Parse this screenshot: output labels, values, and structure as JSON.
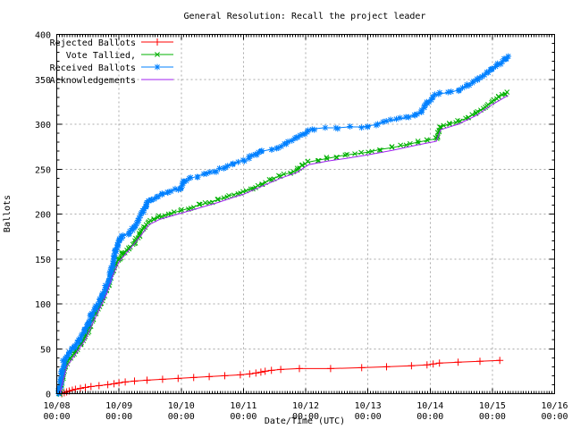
{
  "chart_data": {
    "type": "line",
    "title": "General Resolution: Recall the project leader",
    "xlabel": "Date/Time (UTC)",
    "ylabel": "Ballots",
    "xlim_days": [
      0,
      8
    ],
    "ylim": [
      0,
      400
    ],
    "grid": true,
    "legend_position": "top-left",
    "x_ticks": [
      {
        "t": 0,
        "line1": "10/08",
        "line2": "00:00"
      },
      {
        "t": 1,
        "line1": "10/09",
        "line2": "00:00"
      },
      {
        "t": 2,
        "line1": "10/10",
        "line2": "00:00"
      },
      {
        "t": 3,
        "line1": "10/11",
        "line2": "00:00"
      },
      {
        "t": 4,
        "line1": "10/12",
        "line2": "00:00"
      },
      {
        "t": 5,
        "line1": "10/13",
        "line2": "00:00"
      },
      {
        "t": 6,
        "line1": "10/14",
        "line2": "00:00"
      },
      {
        "t": 7,
        "line1": "10/15",
        "line2": "00:00"
      },
      {
        "t": 8,
        "line1": "10/16",
        "line2": "00:00"
      }
    ],
    "y_ticks": [
      0,
      50,
      100,
      150,
      200,
      250,
      300,
      350,
      400
    ],
    "colors": {
      "background": "#ffffff",
      "axis": "#000000",
      "grid": "#aaaaaa"
    },
    "series": [
      {
        "name": "Rejected Ballots",
        "color": "#ff0000",
        "marker": "plus",
        "marker_mode": "points",
        "points": [
          [
            0.08,
            0
          ],
          [
            0.12,
            1
          ],
          [
            0.16,
            2
          ],
          [
            0.2,
            3
          ],
          [
            0.25,
            4
          ],
          [
            0.3,
            5
          ],
          [
            0.38,
            6
          ],
          [
            0.46,
            7
          ],
          [
            0.55,
            8
          ],
          [
            0.68,
            9
          ],
          [
            0.82,
            10
          ],
          [
            0.92,
            11
          ],
          [
            1.0,
            12
          ],
          [
            1.1,
            13
          ],
          [
            1.25,
            14
          ],
          [
            1.45,
            15
          ],
          [
            1.7,
            16
          ],
          [
            1.95,
            17
          ],
          [
            2.2,
            18
          ],
          [
            2.45,
            19
          ],
          [
            2.7,
            20
          ],
          [
            2.95,
            21
          ],
          [
            3.1,
            22
          ],
          [
            3.2,
            23
          ],
          [
            3.28,
            24
          ],
          [
            3.35,
            25
          ],
          [
            3.45,
            26
          ],
          [
            3.6,
            27
          ],
          [
            3.9,
            28
          ],
          [
            4.4,
            28
          ],
          [
            4.9,
            29
          ],
          [
            5.3,
            30
          ],
          [
            5.7,
            31
          ],
          [
            5.95,
            32
          ],
          [
            6.05,
            33
          ],
          [
            6.15,
            34
          ],
          [
            6.45,
            35
          ],
          [
            6.8,
            36
          ],
          [
            7.12,
            37
          ]
        ]
      },
      {
        "name": "Vote Tallied,",
        "color": "#00b000",
        "marker": "cross",
        "marker_mode": "dense",
        "marker_every_value": 2,
        "points": [
          [
            0.04,
            0
          ],
          [
            0.07,
            8
          ],
          [
            0.1,
            18
          ],
          [
            0.13,
            28
          ],
          [
            0.16,
            34
          ],
          [
            0.22,
            40
          ],
          [
            0.3,
            47
          ],
          [
            0.38,
            55
          ],
          [
            0.46,
            64
          ],
          [
            0.52,
            73
          ],
          [
            0.58,
            83
          ],
          [
            0.64,
            92
          ],
          [
            0.7,
            100
          ],
          [
            0.75,
            107
          ],
          [
            0.8,
            115
          ],
          [
            0.85,
            124
          ],
          [
            0.89,
            134
          ],
          [
            0.93,
            143
          ],
          [
            1.0,
            150
          ],
          [
            1.07,
            157
          ],
          [
            1.15,
            162
          ],
          [
            1.25,
            168
          ],
          [
            1.33,
            177
          ],
          [
            1.41,
            186
          ],
          [
            1.48,
            191
          ],
          [
            1.56,
            194
          ],
          [
            1.65,
            197
          ],
          [
            1.75,
            199
          ],
          [
            1.85,
            201
          ],
          [
            2.0,
            204
          ],
          [
            2.15,
            207
          ],
          [
            2.3,
            210
          ],
          [
            2.45,
            213
          ],
          [
            2.6,
            216
          ],
          [
            2.75,
            220
          ],
          [
            2.9,
            223
          ],
          [
            3.0,
            225
          ],
          [
            3.15,
            229
          ],
          [
            3.3,
            234
          ],
          [
            3.45,
            239
          ],
          [
            3.6,
            243
          ],
          [
            3.75,
            246
          ],
          [
            3.85,
            249
          ],
          [
            3.95,
            255
          ],
          [
            4.05,
            258
          ],
          [
            4.2,
            260
          ],
          [
            4.35,
            262
          ],
          [
            4.5,
            264
          ],
          [
            4.65,
            266
          ],
          [
            4.8,
            267
          ],
          [
            5.0,
            269
          ],
          [
            5.2,
            272
          ],
          [
            5.4,
            274
          ],
          [
            5.6,
            277
          ],
          [
            5.8,
            280
          ],
          [
            5.95,
            282
          ],
          [
            6.1,
            284
          ],
          [
            6.17,
            297
          ],
          [
            6.3,
            300
          ],
          [
            6.45,
            303
          ],
          [
            6.6,
            307
          ],
          [
            6.75,
            313
          ],
          [
            6.9,
            320
          ],
          [
            7.0,
            325
          ],
          [
            7.1,
            330
          ],
          [
            7.2,
            334
          ],
          [
            7.25,
            336
          ]
        ]
      },
      {
        "name": "Received Ballots",
        "color": "#0080ff",
        "marker": "star",
        "marker_mode": "dense",
        "marker_every_value": 2,
        "points": [
          [
            0.03,
            0
          ],
          [
            0.05,
            6
          ],
          [
            0.07,
            15
          ],
          [
            0.09,
            25
          ],
          [
            0.11,
            36
          ],
          [
            0.14,
            40
          ],
          [
            0.2,
            45
          ],
          [
            0.28,
            52
          ],
          [
            0.36,
            60
          ],
          [
            0.44,
            70
          ],
          [
            0.5,
            78
          ],
          [
            0.56,
            87
          ],
          [
            0.62,
            95
          ],
          [
            0.68,
            102
          ],
          [
            0.73,
            110
          ],
          [
            0.78,
            118
          ],
          [
            0.83,
            126
          ],
          [
            0.87,
            136
          ],
          [
            0.91,
            148
          ],
          [
            0.95,
            158
          ],
          [
            1.0,
            170
          ],
          [
            1.05,
            176
          ],
          [
            1.15,
            178
          ],
          [
            1.22,
            183
          ],
          [
            1.3,
            192
          ],
          [
            1.38,
            203
          ],
          [
            1.45,
            211
          ],
          [
            1.52,
            216
          ],
          [
            1.6,
            219
          ],
          [
            1.7,
            222
          ],
          [
            1.8,
            225
          ],
          [
            1.9,
            227
          ],
          [
            2.0,
            229
          ],
          [
            2.05,
            236
          ],
          [
            2.12,
            239
          ],
          [
            2.25,
            242
          ],
          [
            2.4,
            245
          ],
          [
            2.55,
            248
          ],
          [
            2.7,
            252
          ],
          [
            2.85,
            257
          ],
          [
            3.0,
            259
          ],
          [
            3.1,
            263
          ],
          [
            3.2,
            267
          ],
          [
            3.3,
            270
          ],
          [
            3.45,
            272
          ],
          [
            3.55,
            274
          ],
          [
            3.7,
            279
          ],
          [
            3.85,
            285
          ],
          [
            3.95,
            289
          ],
          [
            4.05,
            293
          ],
          [
            4.15,
            295
          ],
          [
            4.3,
            296
          ],
          [
            4.5,
            296
          ],
          [
            4.7,
            297
          ],
          [
            4.9,
            297
          ],
          [
            5.0,
            298
          ],
          [
            5.15,
            300
          ],
          [
            5.3,
            303
          ],
          [
            5.45,
            305
          ],
          [
            5.6,
            307
          ],
          [
            5.75,
            310
          ],
          [
            5.85,
            314
          ],
          [
            5.95,
            324
          ],
          [
            6.05,
            331
          ],
          [
            6.15,
            334
          ],
          [
            6.3,
            335
          ],
          [
            6.45,
            338
          ],
          [
            6.6,
            343
          ],
          [
            6.75,
            350
          ],
          [
            6.9,
            357
          ],
          [
            7.0,
            362
          ],
          [
            7.1,
            367
          ],
          [
            7.2,
            372
          ],
          [
            7.25,
            375
          ]
        ]
      },
      {
        "name": "Acknowledgements",
        "color": "#a020f0",
        "marker": "none",
        "marker_mode": "none",
        "points": [
          [
            0.05,
            0
          ],
          [
            0.1,
            14
          ],
          [
            0.16,
            30
          ],
          [
            0.3,
            44
          ],
          [
            0.46,
            60
          ],
          [
            0.58,
            79
          ],
          [
            0.7,
            96
          ],
          [
            0.8,
            111
          ],
          [
            0.89,
            130
          ],
          [
            1.0,
            147
          ],
          [
            1.15,
            159
          ],
          [
            1.33,
            174
          ],
          [
            1.48,
            188
          ],
          [
            1.65,
            194
          ],
          [
            1.85,
            198
          ],
          [
            2.0,
            201
          ],
          [
            2.3,
            207
          ],
          [
            2.6,
            213
          ],
          [
            2.9,
            220
          ],
          [
            3.0,
            222
          ],
          [
            3.3,
            231
          ],
          [
            3.6,
            240
          ],
          [
            3.85,
            246
          ],
          [
            4.05,
            255
          ],
          [
            4.35,
            259
          ],
          [
            4.65,
            262
          ],
          [
            5.0,
            266
          ],
          [
            5.4,
            271
          ],
          [
            5.8,
            277
          ],
          [
            6.1,
            281
          ],
          [
            6.17,
            294
          ],
          [
            6.45,
            300
          ],
          [
            6.75,
            310
          ],
          [
            7.0,
            322
          ],
          [
            7.25,
            332
          ]
        ]
      }
    ]
  }
}
